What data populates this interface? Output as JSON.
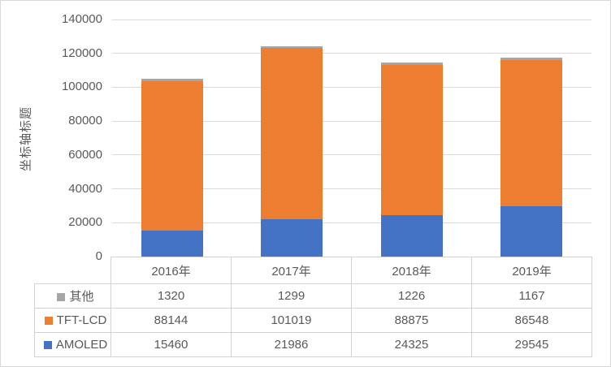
{
  "chart": {
    "y_axis_title": "坐标轴标题",
    "background_color": "#FFFFFF",
    "border_color": "#D9D9D9",
    "gridline_color": "#DADADA",
    "axis_text_color": "#595959",
    "table_border_color": "#D2D2D2"
  },
  "chart_data": {
    "type": "bar",
    "stacked": true,
    "title": "",
    "xlabel": "",
    "ylabel": "坐标轴标题",
    "categories": [
      "2016年",
      "2017年",
      "2018年",
      "2019年"
    ],
    "series": [
      {
        "id": "amoled",
        "name": "AMOLED",
        "color": "#4472C4",
        "values": [
          15460,
          21986,
          24325,
          29545
        ]
      },
      {
        "id": "tft-lcd",
        "name": "TFT-LCD",
        "color": "#ED7D31",
        "values": [
          88144,
          101019,
          88875,
          86548
        ]
      },
      {
        "id": "other",
        "name": "其他",
        "color": "#A6A6A6",
        "values": [
          1320,
          1299,
          1226,
          1167
        ]
      }
    ],
    "ylim": [
      0,
      140000
    ],
    "yticks": [
      0,
      20000,
      40000,
      60000,
      80000,
      100000,
      120000,
      140000
    ],
    "grid": true,
    "legend_position": "data-table-left",
    "table_row_order_top_to_bottom": [
      "其他",
      "TFT-LCD",
      "AMOLED"
    ]
  }
}
